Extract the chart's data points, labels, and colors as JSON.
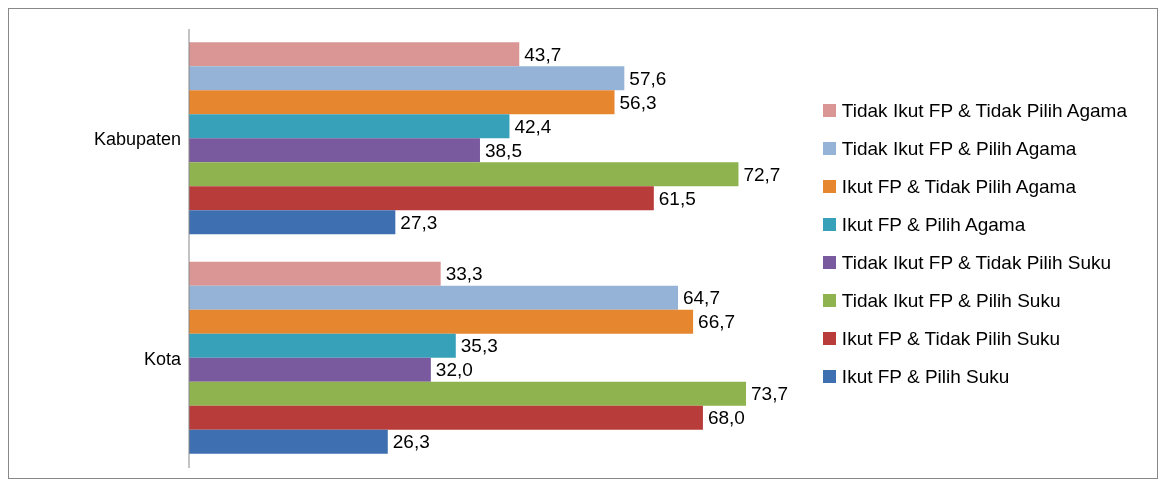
{
  "chart_data": {
    "type": "bar",
    "orientation": "horizontal",
    "categories": [
      "Kabupaten",
      "Kota"
    ],
    "data_labels": true,
    "legend": "right",
    "grid": false,
    "series": [
      {
        "name": "Tidak Ikut FP & Tidak Pilih Agama",
        "color": "#d99694",
        "values": [
          43.7,
          33.3
        ],
        "value_labels": [
          "43,7",
          "33,3"
        ]
      },
      {
        "name": "Tidak Ikut FP & Pilih Agama",
        "color": "#95b3d7",
        "values": [
          57.6,
          64.7
        ],
        "value_labels": [
          "57,6",
          "64,7"
        ]
      },
      {
        "name": "Ikut FP & Tidak Pilih Agama",
        "color": "#e6862e",
        "values": [
          56.3,
          66.7
        ],
        "value_labels": [
          "56,3",
          "66,7"
        ]
      },
      {
        "name": "Ikut FP & Pilih Agama",
        "color": "#37a1b9",
        "values": [
          42.4,
          35.3
        ],
        "value_labels": [
          "42,4",
          "35,3"
        ]
      },
      {
        "name": "Tidak Ikut FP & Tidak Pilih Suku",
        "color": "#7a5a9e",
        "values": [
          38.5,
          32.0
        ],
        "value_labels": [
          "38,5",
          "32,0"
        ]
      },
      {
        "name": "Tidak Ikut FP & Pilih Suku",
        "color": "#8eb34f",
        "values": [
          72.7,
          73.7
        ],
        "value_labels": [
          "72,7",
          "73,7"
        ]
      },
      {
        "name": "Ikut FP & Tidak Pilih Suku",
        "color": "#b83c3a",
        "values": [
          61.5,
          68.0
        ],
        "value_labels": [
          "61,5",
          "68,0"
        ]
      },
      {
        "name": "Ikut FP & Pilih Suku",
        "color": "#3e6fb0",
        "values": [
          27.3,
          26.3
        ],
        "value_labels": [
          "27,3",
          "26,3"
        ]
      }
    ]
  }
}
